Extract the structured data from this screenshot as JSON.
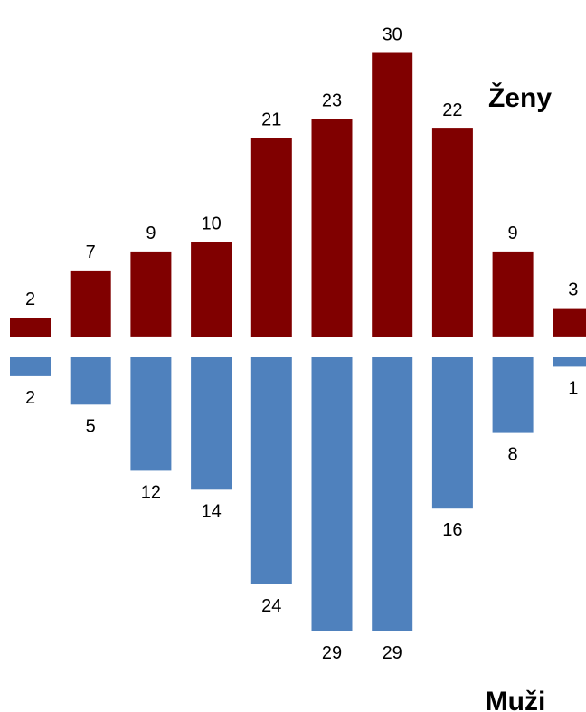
{
  "chart_data": {
    "type": "bar",
    "categories": [
      "",
      "",
      "",
      "",
      "",
      "",
      "",
      "",
      "",
      ""
    ],
    "series": [
      {
        "name": "Ženy",
        "values": [
          2,
          7,
          9,
          10,
          21,
          23,
          30,
          22,
          9,
          3
        ],
        "color": "#800000",
        "direction": "up"
      },
      {
        "name": "Muži",
        "values": [
          2,
          5,
          12,
          14,
          24,
          29,
          29,
          16,
          8,
          1
        ],
        "color": "#4F81BD",
        "direction": "down"
      }
    ],
    "grid": false,
    "legend": "none"
  }
}
